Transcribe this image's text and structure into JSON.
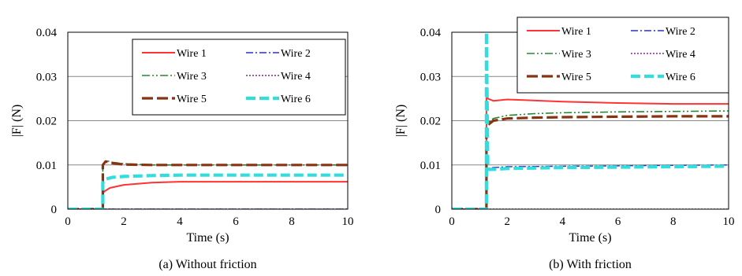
{
  "chart_data": [
    {
      "type": "line",
      "caption": "(a) Without friction",
      "xlabel": "Time (s)",
      "ylabel": "|F| (N)",
      "xlim": [
        0,
        10
      ],
      "ylim": [
        0,
        0.04
      ],
      "xticks": [
        "0",
        "2",
        "4",
        "6",
        "8",
        "10"
      ],
      "yticks": [
        "0",
        "0.01",
        "0.02",
        "0.03",
        "0.04"
      ],
      "grid": "horizontal",
      "legend": "top-right",
      "series": [
        {
          "name": "Wire 1",
          "color": "#ff3333",
          "style": "solid",
          "x": [
            0,
            1.25,
            1.25,
            1.3,
            1.5,
            2.0,
            3.0,
            4.0,
            5.0,
            10.0
          ],
          "y": [
            0,
            0,
            0.0035,
            0.004,
            0.0048,
            0.0055,
            0.006,
            0.0062,
            0.0062,
            0.0062
          ]
        },
        {
          "name": "Wire 2",
          "color": "#2233cc",
          "style": "dashdot",
          "x": [
            0,
            10
          ],
          "y": [
            0,
            0
          ]
        },
        {
          "name": "Wire 3",
          "color": "#228833",
          "style": "dashdotdot",
          "x": [
            0,
            1.25,
            1.25,
            1.35,
            1.6,
            2.0,
            3.0,
            4.0,
            10.0
          ],
          "y": [
            0,
            0,
            0.01,
            0.011,
            0.0106,
            0.0103,
            0.01,
            0.01,
            0.01
          ]
        },
        {
          "name": "Wire 4",
          "color": "#882299",
          "style": "dotted",
          "x": [
            0,
            10
          ],
          "y": [
            0,
            0
          ]
        },
        {
          "name": "Wire 5",
          "color": "#883311",
          "style": "longdash",
          "x": [
            0,
            1.25,
            1.25,
            1.35,
            1.6,
            2.0,
            3.0,
            4.0,
            10.0
          ],
          "y": [
            0,
            0,
            0.01,
            0.0108,
            0.0104,
            0.0101,
            0.01,
            0.01,
            0.01
          ]
        },
        {
          "name": "Wire 6",
          "color": "#33dddd",
          "style": "thickdash",
          "x": [
            0,
            1.25,
            1.25,
            1.35,
            1.6,
            2.0,
            3.0,
            4.0,
            10.0
          ],
          "y": [
            0,
            0,
            0.006,
            0.0068,
            0.0072,
            0.0074,
            0.0076,
            0.0077,
            0.0077
          ]
        }
      ]
    },
    {
      "type": "line",
      "caption": "(b) With friction",
      "xlabel": "Time (s)",
      "ylabel": "|F| (N)",
      "xlim": [
        0,
        10
      ],
      "ylim": [
        0,
        0.04
      ],
      "xticks": [
        "0",
        "2",
        "4",
        "6",
        "8",
        "10"
      ],
      "yticks": [
        "0",
        "0.01",
        "0.02",
        "0.03",
        "0.04"
      ],
      "grid": "horizontal",
      "legend": "top-right",
      "series": [
        {
          "name": "Wire 1",
          "color": "#ff3333",
          "style": "solid",
          "x": [
            0,
            1.25,
            1.25,
            1.3,
            1.5,
            2.0,
            2.5,
            4.0,
            6.0,
            8.0,
            10.0
          ],
          "y": [
            0,
            0,
            0.027,
            0.025,
            0.0245,
            0.0248,
            0.0247,
            0.0243,
            0.024,
            0.0238,
            0.0238
          ]
        },
        {
          "name": "Wire 2",
          "color": "#2233cc",
          "style": "dashdot",
          "x": [
            0,
            1.25,
            1.25,
            1.3,
            1.5,
            2.0,
            4.0,
            6.0,
            8.0,
            10.0
          ],
          "y": [
            0,
            0,
            0.009,
            0.0092,
            0.0094,
            0.0096,
            0.0097,
            0.0098,
            0.0099,
            0.01
          ]
        },
        {
          "name": "Wire 3",
          "color": "#228833",
          "style": "dashdotdot",
          "x": [
            0,
            1.25,
            1.25,
            1.3,
            1.5,
            2.0,
            3.0,
            4.0,
            6.0,
            8.0,
            10.0
          ],
          "y": [
            0,
            0,
            0.019,
            0.0195,
            0.0205,
            0.0212,
            0.0216,
            0.0218,
            0.022,
            0.0221,
            0.0222
          ]
        },
        {
          "name": "Wire 4",
          "color": "#882299",
          "style": "dotted",
          "x": [
            0,
            10
          ],
          "y": [
            0,
            0
          ]
        },
        {
          "name": "Wire 5",
          "color": "#883311",
          "style": "longdash",
          "x": [
            0,
            1.25,
            1.25,
            1.3,
            1.5,
            2.0,
            3.0,
            4.0,
            6.0,
            8.0,
            10.0
          ],
          "y": [
            0,
            0,
            0.018,
            0.019,
            0.02,
            0.0205,
            0.0207,
            0.0208,
            0.0209,
            0.021,
            0.021
          ]
        },
        {
          "name": "Wire 6",
          "color": "#33dddd",
          "style": "thickdash",
          "x": [
            0,
            1.25,
            1.25,
            1.3,
            1.5,
            2.0,
            4.0,
            6.0,
            8.0,
            10.0
          ],
          "y": [
            0,
            0,
            0.04,
            0.009,
            0.009,
            0.0092,
            0.0094,
            0.0095,
            0.0096,
            0.0097
          ]
        }
      ]
    }
  ]
}
